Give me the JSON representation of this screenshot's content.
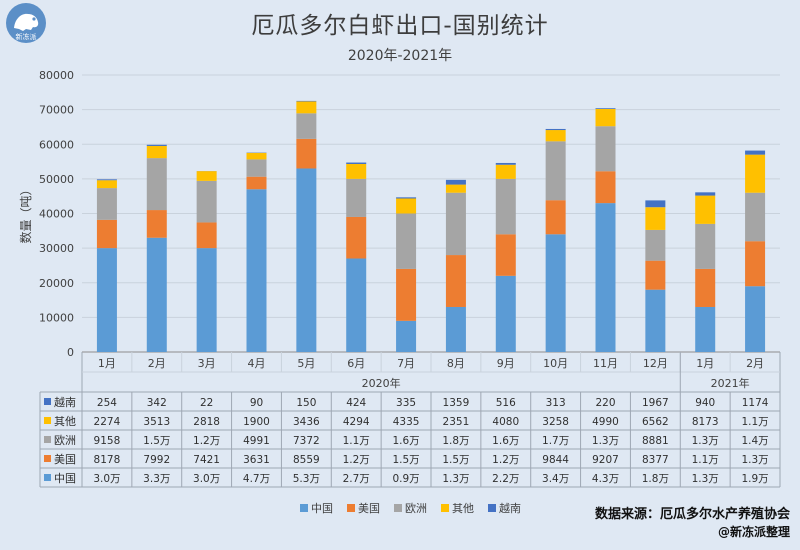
{
  "logo_text": "新冻派",
  "colors": {
    "中国": "#5b9bd5",
    "美国": "#ed7d31",
    "欧洲": "#a5a5a5",
    "其他": "#ffc000",
    "越南": "#4472c4"
  },
  "chart_data": {
    "type": "bar",
    "stacked": true,
    "title": "厄瓜多尔白虾出口-国别统计",
    "subtitle": "2020年-2021年",
    "ylabel": "数量（吨）",
    "ylim": [
      0,
      80000
    ],
    "yticks": [
      "0",
      "10000",
      "20000",
      "30000",
      "40000",
      "50000",
      "60000",
      "70000",
      "80000"
    ],
    "categories": [
      "1月",
      "2月",
      "3月",
      "4月",
      "5月",
      "6月",
      "7月",
      "8月",
      "9月",
      "10月",
      "11月",
      "12月",
      "1月",
      "2月"
    ],
    "year_groups": [
      {
        "label": "2020年",
        "count": 12
      },
      {
        "label": "2021年",
        "count": 2
      }
    ],
    "legend_position": "bottom",
    "series": [
      {
        "name": "中国",
        "values": [
          30000,
          33000,
          30000,
          47000,
          53000,
          27000,
          9000,
          13000,
          22000,
          34000,
          43000,
          18000,
          13000,
          19000
        ],
        "labels": [
          "3.0万",
          "3.3万",
          "3.0万",
          "4.7万",
          "5.3万",
          "2.7万",
          "0.9万",
          "1.3万",
          "2.2万",
          "3.4万",
          "4.3万",
          "1.8万",
          "1.3万",
          "1.9万"
        ]
      },
      {
        "name": "美国",
        "values": [
          8178,
          7992,
          7421,
          3631,
          8559,
          12000,
          15000,
          15000,
          12000,
          9844,
          9207,
          8377,
          11000,
          13000
        ],
        "labels": [
          "8178",
          "7992",
          "7421",
          "3631",
          "8559",
          "1.2万",
          "1.5万",
          "1.5万",
          "1.2万",
          "9844",
          "9207",
          "8377",
          "1.1万",
          "1.3万"
        ]
      },
      {
        "name": "欧洲",
        "values": [
          9158,
          15000,
          12000,
          4991,
          7372,
          11000,
          16000,
          18000,
          16000,
          17000,
          13000,
          8881,
          13000,
          14000
        ],
        "labels": [
          "9158",
          "1.5万",
          "1.2万",
          "4991",
          "7372",
          "1.1万",
          "1.6万",
          "1.8万",
          "1.6万",
          "1.7万",
          "1.3万",
          "8881",
          "1.3万",
          "1.4万"
        ]
      },
      {
        "name": "其他",
        "values": [
          2274,
          3513,
          2818,
          1900,
          3436,
          4294,
          4335,
          2351,
          4080,
          3258,
          4990,
          6562,
          8173,
          11000
        ],
        "labels": [
          "2274",
          "3513",
          "2818",
          "1900",
          "3436",
          "4294",
          "4335",
          "2351",
          "4080",
          "3258",
          "4990",
          "6562",
          "8173",
          "1.1万"
        ]
      },
      {
        "name": "越南",
        "values": [
          254,
          342,
          22,
          90,
          150,
          424,
          335,
          1359,
          516,
          313,
          220,
          1967,
          940,
          1174
        ],
        "labels": [
          "254",
          "342",
          "22",
          "90",
          "150",
          "424",
          "335",
          "1359",
          "516",
          "313",
          "220",
          "1967",
          "940",
          "1174"
        ]
      }
    ],
    "table_row_order": [
      "越南",
      "其他",
      "欧洲",
      "美国",
      "中国"
    ],
    "legend_order": [
      "中国",
      "美国",
      "欧洲",
      "其他",
      "越南"
    ]
  },
  "source": {
    "line1": "数据来源：厄瓜多尔水产养殖协会",
    "line2": "@新冻派整理"
  }
}
